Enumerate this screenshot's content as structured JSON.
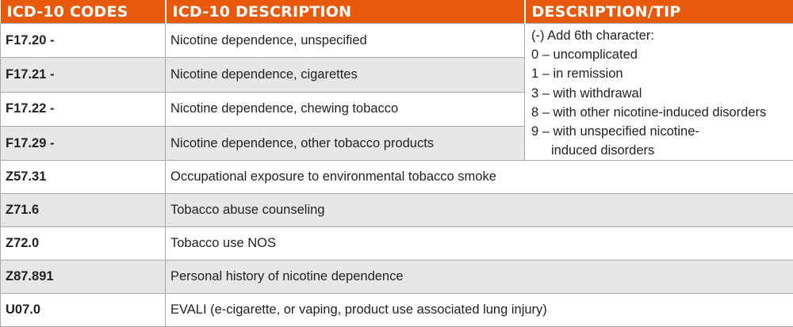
{
  "header": {
    "bg_color": "#e8590c",
    "col_codes": "ICD-10 CODES",
    "col_description": "ICD-10 DESCRIPTION",
    "col_tip": "DESCRIPTION/TIP"
  },
  "tip": {
    "line0": "(-)  Add 6th character:",
    "line1": "0 – uncomplicated",
    "line2": "1 – in remission",
    "line3": "3 – with withdrawal",
    "line4": "8 – with other nicotine-induced disorders",
    "line5": "9 – with unspecified nicotine-",
    "line6": "induced disorders"
  },
  "rows": [
    {
      "code": "F17.20 -",
      "description": "Nicotine dependence, unspecified"
    },
    {
      "code": "F17.21 -",
      "description": "Nicotine dependence, cigarettes"
    },
    {
      "code": "F17.22 -",
      "description": "Nicotine dependence, chewing tobacco"
    },
    {
      "code": "F17.29 -",
      "description": "Nicotine dependence, other tobacco products"
    },
    {
      "code": "Z57.31",
      "description": "Occupational exposure to environmental tobacco smoke"
    },
    {
      "code": "Z71.6",
      "description": "Tobacco abuse counseling"
    },
    {
      "code": "Z72.0",
      "description": "Tobacco use NOS"
    },
    {
      "code": "Z87.891",
      "description": "Personal history of nicotine dependence"
    },
    {
      "code": "U07.0",
      "description": "EVALI (e-cigarette, or vaping, product use associated lung injury)"
    }
  ]
}
